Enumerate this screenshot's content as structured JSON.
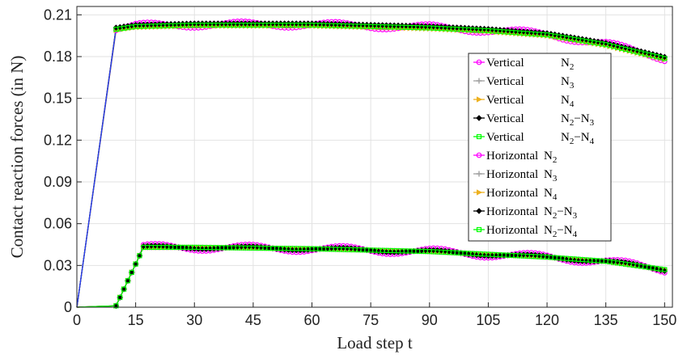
{
  "chart_data": {
    "type": "line",
    "title": "",
    "xlabel": "Load step t",
    "ylabel": "Contact reaction forces (in N)",
    "xlim": [
      0,
      152
    ],
    "ylim": [
      0,
      0.216
    ],
    "xticks": [
      0,
      15,
      30,
      45,
      60,
      75,
      90,
      105,
      120,
      135,
      150
    ],
    "yticks": [
      0,
      0.03,
      0.06,
      0.09,
      0.12,
      0.15,
      0.18,
      0.21
    ],
    "ytick_labels": [
      "0",
      "0.03",
      "0.06",
      "0.09",
      "0.12",
      "0.15",
      "0.18",
      "0.21"
    ],
    "grid": true,
    "legend_position": "right",
    "series": [
      {
        "name": "Vertical N2",
        "label_kind": "Vertical",
        "label_sym": "N",
        "label_sub": "2",
        "label_tail": "",
        "label_sub2": "",
        "color": "#ff00ff",
        "marker": "circle",
        "group": "vertical",
        "base_offset": 0.0,
        "osc_amp": 0.0024,
        "osc_period": 24
      },
      {
        "name": "Vertical N3",
        "label_kind": "Vertical",
        "label_sym": "N",
        "label_sub": "3",
        "label_tail": "",
        "label_sub2": "",
        "color": "#a0a0a0",
        "marker": "plus",
        "group": "vertical",
        "base_offset": 0.0,
        "osc_amp": 0.0,
        "osc_period": 24
      },
      {
        "name": "Vertical N4",
        "label_kind": "Vertical",
        "label_sym": "N",
        "label_sub": "4",
        "label_tail": "",
        "label_sub2": "",
        "color": "#edb120",
        "marker": "triangle-right",
        "group": "vertical",
        "base_offset": -0.001,
        "osc_amp": 0.0,
        "osc_period": 24
      },
      {
        "name": "Vertical N2−N3",
        "label_kind": "Vertical",
        "label_sym": "N",
        "label_sub": "2",
        "label_tail": "−N",
        "label_sub2": "3",
        "color": "#000000",
        "marker": "diamond",
        "group": "vertical",
        "base_offset": 0.0008,
        "osc_amp": 0.0,
        "osc_period": 24
      },
      {
        "name": "Vertical N2−N4",
        "label_kind": "Vertical",
        "label_sym": "N",
        "label_sub": "2",
        "label_tail": "−N",
        "label_sub2": "4",
        "color": "#00ff00",
        "marker": "square",
        "group": "vertical",
        "base_offset": -0.0004,
        "osc_amp": 0.0,
        "osc_period": 24
      },
      {
        "name": "Horizontal N2",
        "label_kind": "Horizontal",
        "label_sym": "N",
        "label_sub": "2",
        "label_tail": "",
        "label_sub2": "",
        "color": "#ff00ff",
        "marker": "circle",
        "group": "horizontal",
        "base_offset": 0.0,
        "osc_amp": 0.0026,
        "osc_period": 24
      },
      {
        "name": "Horizontal N3",
        "label_kind": "Horizontal",
        "label_sym": "N",
        "label_sub": "3",
        "label_tail": "",
        "label_sub2": "",
        "color": "#a0a0a0",
        "marker": "plus",
        "group": "horizontal",
        "base_offset": 0.0,
        "osc_amp": 0.0,
        "osc_period": 24
      },
      {
        "name": "Horizontal N4",
        "label_kind": "Horizontal",
        "label_sym": "N",
        "label_sub": "4",
        "label_tail": "",
        "label_sub2": "",
        "color": "#edb120",
        "marker": "triangle-right",
        "group": "horizontal",
        "base_offset": 0.0,
        "osc_amp": 0.0,
        "osc_period": 24
      },
      {
        "name": "Horizontal N2−N3",
        "label_kind": "Horizontal",
        "label_sym": "N",
        "label_sub": "2",
        "label_tail": "−N",
        "label_sub2": "3",
        "color": "#000000",
        "marker": "diamond",
        "group": "horizontal",
        "base_offset": 0.0,
        "osc_amp": 0.0012,
        "osc_period": 24
      },
      {
        "name": "Horizontal N2−N4",
        "label_kind": "Horizontal",
        "label_sym": "N",
        "label_sub": "2",
        "label_tail": "−N",
        "label_sub2": "4",
        "color": "#00ff00",
        "marker": "square",
        "group": "horizontal",
        "base_offset": 0.0,
        "osc_amp": 0.0,
        "osc_period": 24
      }
    ],
    "vertical_trend": {
      "x": [
        0,
        10,
        15,
        30,
        60,
        90,
        105,
        120,
        135,
        150
      ],
      "y": [
        0,
        0.2,
        0.202,
        0.203,
        0.203,
        0.201,
        0.199,
        0.196,
        0.189,
        0.179
      ]
    },
    "horizontal_trend": {
      "x": [
        0,
        10,
        17,
        30,
        60,
        90,
        105,
        120,
        135,
        150
      ],
      "y": [
        0,
        0.001,
        0.043,
        0.043,
        0.042,
        0.04,
        0.038,
        0.036,
        0.033,
        0.027
      ]
    },
    "reference_lines": [
      {
        "color": "#d62728",
        "x": [
          0,
          10
        ],
        "y": [
          0,
          0.2
        ]
      },
      {
        "color": "#1f3fff",
        "x": [
          0,
          10
        ],
        "y": [
          0,
          0.2
        ]
      }
    ]
  }
}
